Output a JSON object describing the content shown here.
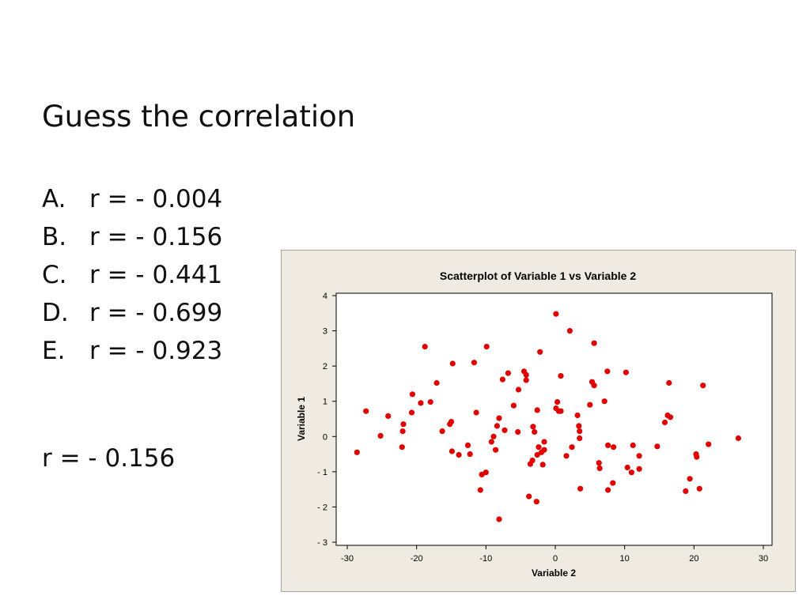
{
  "slide": {
    "title": "Guess the correlation",
    "options": [
      {
        "letter": "A.",
        "text": "r = - 0.004"
      },
      {
        "letter": "B.",
        "text": "r = - 0.156"
      },
      {
        "letter": "C.",
        "text": "r = - 0.441"
      },
      {
        "letter": "D.",
        "text": "r = - 0.699"
      },
      {
        "letter": "E.",
        "text": "r = - 0.923"
      }
    ],
    "answer": "r = - 0.156"
  },
  "colors": {
    "point": "#e00000",
    "panel": "#efebe2"
  },
  "chart_data": {
    "type": "scatter",
    "title": "Scatterplot of Variable 1 vs Variable 2",
    "xlabel": "Variable 2",
    "ylabel": "Variable 1",
    "xlim": [
      -30,
      30
    ],
    "ylim": [
      -3,
      4
    ],
    "xticks": [
      -30,
      -20,
      -10,
      0,
      10,
      20,
      30
    ],
    "yticks": [
      -3,
      -2,
      -1,
      0,
      1,
      2,
      3,
      4
    ],
    "grid": false,
    "points": [
      [
        -28.6,
        -0.45
      ],
      [
        -27.3,
        0.72
      ],
      [
        -25.2,
        0.02
      ],
      [
        -24.1,
        0.58
      ],
      [
        -21.9,
        0.35
      ],
      [
        -22.0,
        0.15
      ],
      [
        -22.1,
        -0.3
      ],
      [
        -20.6,
        1.2
      ],
      [
        -20.7,
        0.68
      ],
      [
        -19.4,
        0.95
      ],
      [
        -18.8,
        2.55
      ],
      [
        -18.0,
        0.98
      ],
      [
        -17.1,
        1.52
      ],
      [
        -16.3,
        0.15
      ],
      [
        -15.0,
        0.42
      ],
      [
        -15.2,
        0.35
      ],
      [
        -14.8,
        2.07
      ],
      [
        -14.9,
        -0.42
      ],
      [
        -13.9,
        -0.52
      ],
      [
        -12.6,
        -0.25
      ],
      [
        -12.3,
        -0.5
      ],
      [
        -11.7,
        2.1
      ],
      [
        -11.4,
        0.68
      ],
      [
        -10.6,
        -1.08
      ],
      [
        -10.8,
        -1.52
      ],
      [
        -10.0,
        -1.02
      ],
      [
        -9.9,
        2.55
      ],
      [
        -9.2,
        -0.15
      ],
      [
        -8.9,
        0.0
      ],
      [
        -8.6,
        -0.38
      ],
      [
        -8.4,
        0.3
      ],
      [
        -8.1,
        0.52
      ],
      [
        -8.1,
        -2.35
      ],
      [
        -7.6,
        1.62
      ],
      [
        -7.3,
        0.18
      ],
      [
        -6.8,
        1.8
      ],
      [
        -6.0,
        0.88
      ],
      [
        -5.4,
        0.13
      ],
      [
        -5.3,
        1.33
      ],
      [
        -4.5,
        1.85
      ],
      [
        -4.2,
        1.75
      ],
      [
        -4.2,
        1.6
      ],
      [
        -3.8,
        -1.7
      ],
      [
        -3.6,
        -0.78
      ],
      [
        -3.3,
        -0.68
      ],
      [
        -3.2,
        0.28
      ],
      [
        -3.0,
        0.13
      ],
      [
        -2.6,
        0.75
      ],
      [
        -2.6,
        -0.52
      ],
      [
        -2.4,
        -0.3
      ],
      [
        -2.2,
        2.4
      ],
      [
        -2.0,
        -0.45
      ],
      [
        -2.7,
        -1.85
      ],
      [
        -1.8,
        -0.8
      ],
      [
        -1.6,
        -0.15
      ],
      [
        -1.6,
        -0.38
      ],
      [
        0.1,
        3.48
      ],
      [
        0.1,
        0.8
      ],
      [
        0.3,
        0.98
      ],
      [
        0.5,
        0.72
      ],
      [
        0.8,
        0.72
      ],
      [
        0.8,
        1.72
      ],
      [
        1.6,
        -0.55
      ],
      [
        2.1,
        3.0
      ],
      [
        2.4,
        -0.3
      ],
      [
        3.2,
        0.6
      ],
      [
        3.4,
        0.3
      ],
      [
        3.5,
        0.15
      ],
      [
        3.5,
        -0.05
      ],
      [
        3.6,
        -1.48
      ],
      [
        5.0,
        0.9
      ],
      [
        5.3,
        1.55
      ],
      [
        5.6,
        1.45
      ],
      [
        5.6,
        2.65
      ],
      [
        6.3,
        -0.75
      ],
      [
        6.4,
        -0.9
      ],
      [
        7.1,
        1.0
      ],
      [
        7.5,
        1.85
      ],
      [
        7.6,
        -0.25
      ],
      [
        7.6,
        -1.52
      ],
      [
        8.3,
        -1.32
      ],
      [
        8.4,
        -0.3
      ],
      [
        10.2,
        1.82
      ],
      [
        10.4,
        -0.88
      ],
      [
        11.0,
        -1.02
      ],
      [
        11.2,
        -0.25
      ],
      [
        12.1,
        -0.55
      ],
      [
        12.1,
        -0.92
      ],
      [
        14.7,
        -0.28
      ],
      [
        15.8,
        0.4
      ],
      [
        16.2,
        0.6
      ],
      [
        16.4,
        1.52
      ],
      [
        16.6,
        0.55
      ],
      [
        18.8,
        -1.55
      ],
      [
        19.4,
        -1.2
      ],
      [
        20.3,
        -0.5
      ],
      [
        20.4,
        -0.58
      ],
      [
        20.8,
        -1.48
      ],
      [
        21.3,
        1.45
      ],
      [
        22.1,
        -0.22
      ],
      [
        26.4,
        -0.05
      ]
    ]
  }
}
